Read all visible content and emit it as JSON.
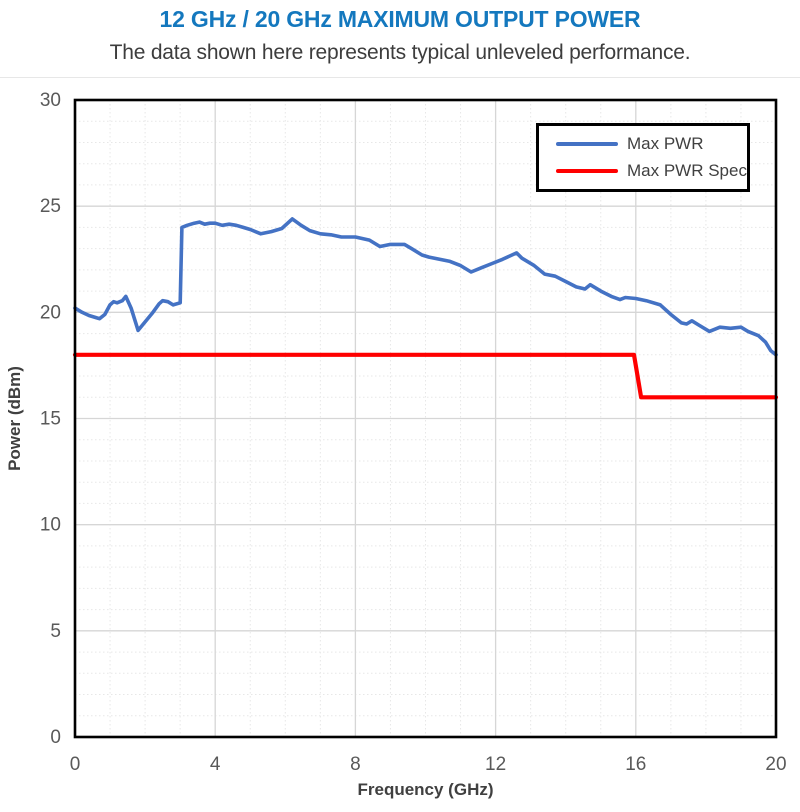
{
  "header": {
    "title": "12 GHz / 20 GHz MAXIMUM OUTPUT POWER",
    "subtitle": "The data shown here represents typical unleveled performance.",
    "title_color": "#1478BE",
    "subtitle_color": "#3D3D3D"
  },
  "chart_data": {
    "type": "line",
    "title": "",
    "xlabel": "Frequency (GHz)",
    "ylabel": "Power (dBm)",
    "xlim": [
      0,
      20
    ],
    "ylim": [
      0,
      30
    ],
    "x_ticks": [
      0,
      4,
      8,
      12,
      16,
      20
    ],
    "y_ticks": [
      0,
      5,
      10,
      15,
      20,
      25,
      30
    ],
    "minor_grid_step": {
      "x": 1,
      "y": 1
    },
    "grid": "major and minor, light gray",
    "legend_position": "top-right, black framed box",
    "colors": {
      "axis_text": "#595959",
      "axis_title": "#404040",
      "major_grid": "#D6D6D6",
      "minor_grid": "#E7E7E7",
      "plot_border": "#000000"
    },
    "series": [
      {
        "name": "Max PWR",
        "color": "#4472C4",
        "width": 3.6,
        "points": [
          [
            0,
            20.2
          ],
          [
            0.2,
            20.0
          ],
          [
            0.4,
            19.85
          ],
          [
            0.6,
            19.75
          ],
          [
            0.7,
            19.7
          ],
          [
            0.85,
            19.9
          ],
          [
            1.0,
            20.35
          ],
          [
            1.1,
            20.5
          ],
          [
            1.2,
            20.45
          ],
          [
            1.35,
            20.55
          ],
          [
            1.45,
            20.75
          ],
          [
            1.6,
            20.2
          ],
          [
            1.8,
            19.15
          ],
          [
            2.0,
            19.55
          ],
          [
            2.2,
            19.95
          ],
          [
            2.4,
            20.4
          ],
          [
            2.5,
            20.55
          ],
          [
            2.65,
            20.5
          ],
          [
            2.8,
            20.35
          ],
          [
            3.0,
            20.45
          ],
          [
            3.05,
            24.0
          ],
          [
            3.2,
            24.1
          ],
          [
            3.4,
            24.2
          ],
          [
            3.55,
            24.25
          ],
          [
            3.7,
            24.15
          ],
          [
            3.85,
            24.2
          ],
          [
            4.0,
            24.2
          ],
          [
            4.2,
            24.1
          ],
          [
            4.4,
            24.15
          ],
          [
            4.6,
            24.1
          ],
          [
            4.8,
            24.0
          ],
          [
            5.0,
            23.9
          ],
          [
            5.3,
            23.7
          ],
          [
            5.6,
            23.8
          ],
          [
            5.9,
            23.95
          ],
          [
            6.2,
            24.4
          ],
          [
            6.45,
            24.1
          ],
          [
            6.7,
            23.85
          ],
          [
            7.0,
            23.7
          ],
          [
            7.3,
            23.65
          ],
          [
            7.6,
            23.55
          ],
          [
            8.0,
            23.55
          ],
          [
            8.4,
            23.4
          ],
          [
            8.7,
            23.1
          ],
          [
            9.0,
            23.2
          ],
          [
            9.4,
            23.2
          ],
          [
            9.6,
            23.0
          ],
          [
            9.9,
            22.7
          ],
          [
            10.1,
            22.6
          ],
          [
            10.4,
            22.5
          ],
          [
            10.7,
            22.4
          ],
          [
            11.0,
            22.2
          ],
          [
            11.3,
            21.9
          ],
          [
            11.6,
            22.1
          ],
          [
            11.9,
            22.3
          ],
          [
            12.2,
            22.5
          ],
          [
            12.6,
            22.8
          ],
          [
            12.75,
            22.55
          ],
          [
            13.1,
            22.2
          ],
          [
            13.4,
            21.8
          ],
          [
            13.7,
            21.7
          ],
          [
            14.0,
            21.45
          ],
          [
            14.3,
            21.2
          ],
          [
            14.55,
            21.1
          ],
          [
            14.7,
            21.3
          ],
          [
            15.0,
            21.0
          ],
          [
            15.3,
            20.75
          ],
          [
            15.55,
            20.6
          ],
          [
            15.7,
            20.7
          ],
          [
            16.0,
            20.65
          ],
          [
            16.3,
            20.55
          ],
          [
            16.7,
            20.35
          ],
          [
            17.0,
            19.9
          ],
          [
            17.3,
            19.5
          ],
          [
            17.45,
            19.45
          ],
          [
            17.6,
            19.6
          ],
          [
            17.8,
            19.4
          ],
          [
            18.1,
            19.1
          ],
          [
            18.4,
            19.3
          ],
          [
            18.7,
            19.25
          ],
          [
            19.0,
            19.3
          ],
          [
            19.2,
            19.1
          ],
          [
            19.5,
            18.9
          ],
          [
            19.7,
            18.6
          ],
          [
            19.85,
            18.2
          ],
          [
            20,
            18.0
          ]
        ]
      },
      {
        "name": "Max PWR Spec",
        "color": "#FF0000",
        "width": 4.2,
        "points": [
          [
            0,
            18
          ],
          [
            15.95,
            18
          ],
          [
            16.15,
            16
          ],
          [
            20,
            16
          ]
        ]
      }
    ]
  }
}
